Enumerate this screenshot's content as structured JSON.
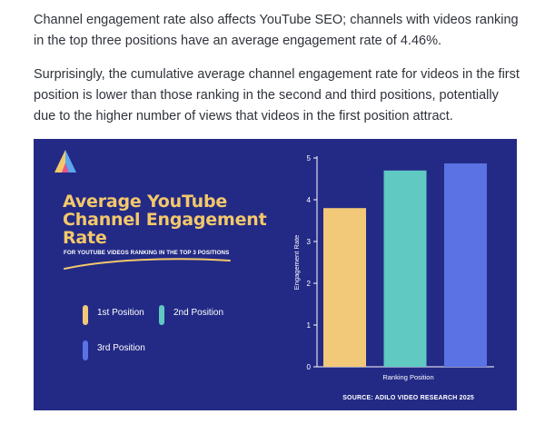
{
  "article": {
    "paragraph1": "Channel engagement rate also affects YouTube SEO; channels with videos ranking in the top three positions have an average engagement rate of 4.46%.",
    "paragraph2": "Surprisingly, the cumulative average channel engagement rate for videos in the first position is lower than those ranking in the second and third positions, potentially due to the higher number of views that videos in the first position attract."
  },
  "infographic": {
    "background": "#232a86",
    "title_lines": [
      "Average YouTube",
      "Channel Engagement",
      "Rate"
    ],
    "subtitle": "FOR YOUTUBE VIDEOS RANKING IN THE TOP 3 POSITIONS",
    "source": "SOURCE: ADILO VIDEO RESEARCH 2025",
    "logo_icon": "adilo-logo-icon",
    "accent_title": "#f4c86a"
  },
  "chart_data": {
    "type": "bar",
    "categories": [
      "1st Position",
      "2nd Position",
      "3rd Position"
    ],
    "values": [
      3.8,
      4.7,
      4.87
    ],
    "colors": [
      "#f2c879",
      "#5fc9c2",
      "#5a72e3"
    ],
    "xlabel": "Ranking Position",
    "ylabel": "Engagement Rate",
    "ylim": [
      0,
      5
    ],
    "yticks": [
      "0",
      "1",
      "2",
      "3",
      "4",
      "5"
    ],
    "grid": false,
    "legend": [
      {
        "label": "1st Position",
        "color": "#f2c879"
      },
      {
        "label": "2nd Position",
        "color": "#5fc9c2"
      },
      {
        "label": "3rd Position",
        "color": "#5a72e3"
      }
    ],
    "legend_placement": "left"
  }
}
